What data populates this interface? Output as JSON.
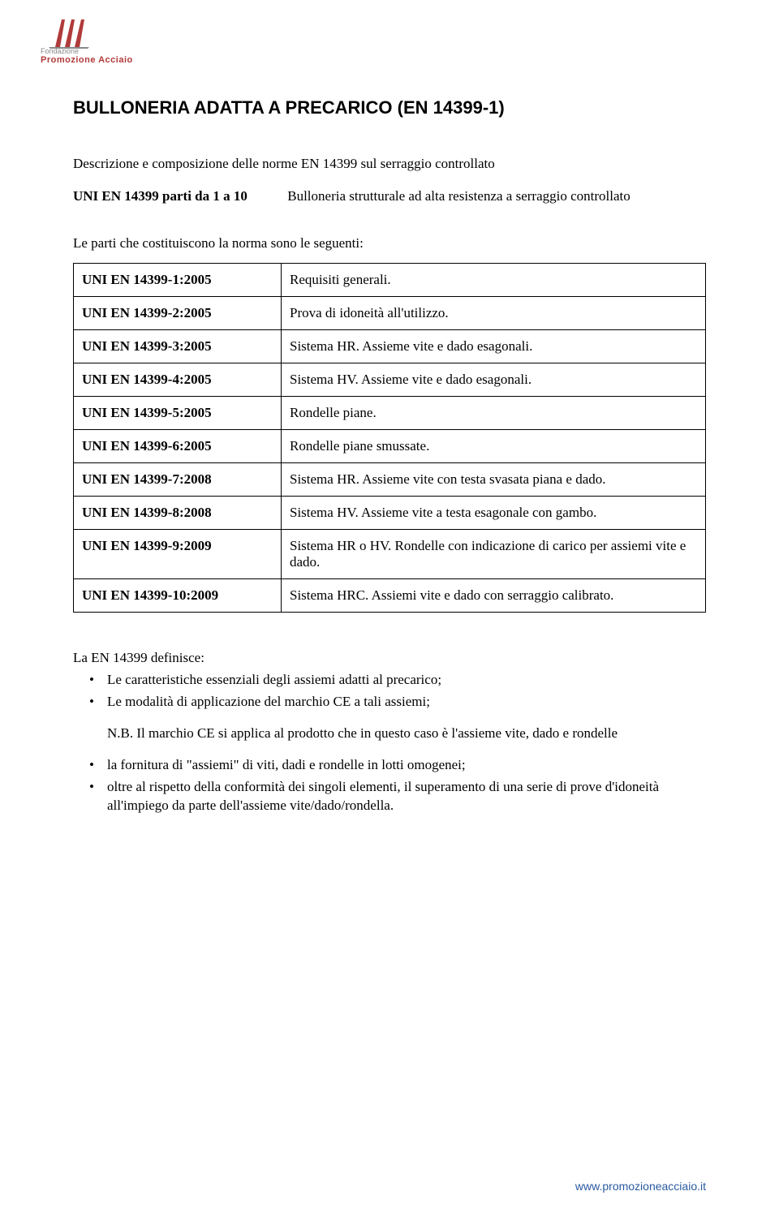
{
  "logo": {
    "line1": "Fondazione",
    "line2": "Promozione Acciaio",
    "mark_color": "#b13a3a"
  },
  "title": "BULLONERIA ADATTA A PRECARICO (EN 14399-1)",
  "subtitle": "Descrizione e composizione delle norme EN 14399 sul serraggio controllato",
  "lead_row": {
    "code": "UNI EN 14399 parti da 1 a 10",
    "desc": "Bulloneria strutturale ad alta resistenza a serraggio controllato"
  },
  "parts_intro": "Le parti che costituiscono la norma sono le seguenti:",
  "standards": [
    {
      "code": "UNI EN 14399-1:2005",
      "desc": "Requisiti generali."
    },
    {
      "code": "UNI EN 14399-2:2005",
      "desc": "Prova di idoneità all'utilizzo."
    },
    {
      "code": "UNI EN 14399-3:2005",
      "desc": "Sistema HR. Assieme vite e dado esagonali."
    },
    {
      "code": "UNI EN 14399-4:2005",
      "desc": "Sistema HV. Assieme vite e dado esagonali."
    },
    {
      "code": "UNI EN 14399-5:2005",
      "desc": "Rondelle piane."
    },
    {
      "code": "UNI EN 14399-6:2005",
      "desc": "Rondelle piane smussate."
    },
    {
      "code": "UNI EN 14399-7:2008",
      "desc": "Sistema HR. Assieme vite con testa svasata piana e dado."
    },
    {
      "code": "UNI EN 14399-8:2008",
      "desc": "Sistema HV. Assieme vite a testa esagonale con gambo."
    },
    {
      "code": "UNI EN 14399-9:2009",
      "desc": "Sistema HR o HV. Rondelle con indicazione di carico per assiemi vite e dado."
    },
    {
      "code": "UNI EN 14399-10:2009",
      "desc": "Sistema HRC. Assiemi vite e dado con serraggio calibrato."
    }
  ],
  "defines": {
    "intro": "La EN 14399 definisce:",
    "items_a": [
      "Le caratteristiche essenziali degli assiemi adatti al precarico;",
      "Le modalità di applicazione del marchio CE a tali assiemi;"
    ],
    "nb": "N.B. Il marchio CE si applica al prodotto che in questo caso è l'assieme vite, dado e rondelle",
    "items_b": [
      "la fornitura di \"assiemi\" di viti, dadi e rondelle in lotti omogenei;",
      "oltre al rispetto della conformità dei singoli elementi, il superamento di una serie di prove d'idoneità all'impiego da parte dell'assieme vite/dado/rondella."
    ]
  },
  "footer": "www.promozioneacciaio.it"
}
